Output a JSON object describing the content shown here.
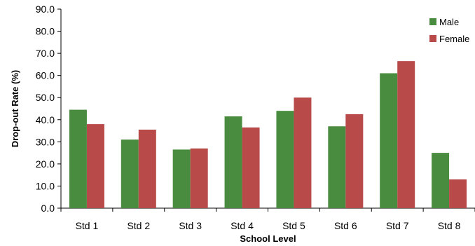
{
  "chart_data": {
    "type": "bar",
    "title": "",
    "xlabel": "School Level",
    "ylabel": "Drop-out Rate (%)",
    "ylim": [
      0,
      90
    ],
    "yticks": [
      "0.0",
      "10.0",
      "20.0",
      "30.0",
      "40.0",
      "50.0",
      "60.0",
      "70.0",
      "80.0",
      "90.0"
    ],
    "grid": false,
    "legend_position": "top-right",
    "categories": [
      "Std 1",
      "Std 2",
      "Std 3",
      "Std 4",
      "Std 5",
      "Std 6",
      "Std 7",
      "Std 8"
    ],
    "series": [
      {
        "name": "Male",
        "color": "#4a8c3f",
        "values": [
          44.5,
          31.0,
          26.5,
          41.5,
          44.0,
          37.0,
          61.0,
          25.0
        ]
      },
      {
        "name": "Female",
        "color": "#b84a4a",
        "values": [
          38.0,
          35.5,
          27.0,
          36.5,
          50.0,
          42.5,
          66.5,
          13.0
        ]
      }
    ]
  }
}
